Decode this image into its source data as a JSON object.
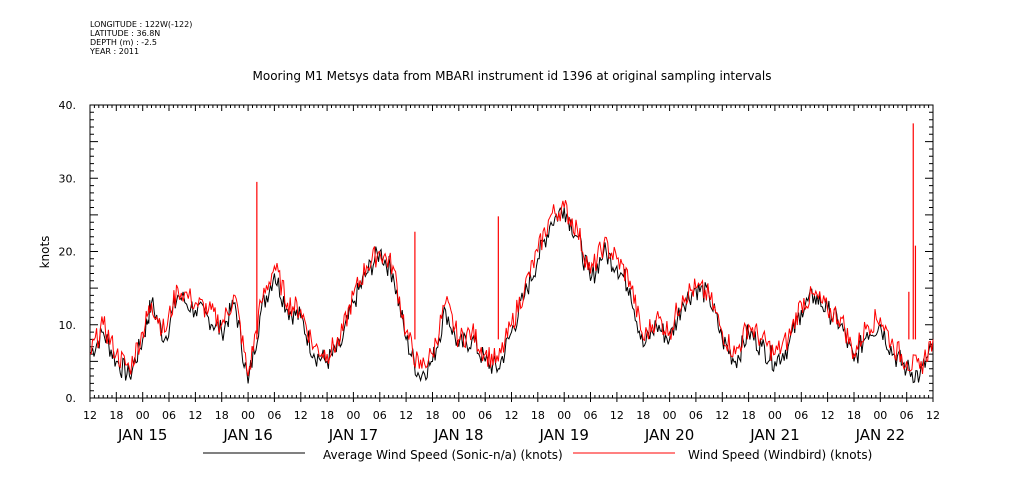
{
  "meta": {
    "longitude": "LONGITUDE : 122W(-122)",
    "latitude": "LATITUDE : 36.8N",
    "depth": "DEPTH (m) : -2.5",
    "year": "YEAR : 2011"
  },
  "chart_data": {
    "type": "line",
    "title": "Mooring M1 Metsys data from MBARI instrument id 1396 at original sampling intervals",
    "xlabel": "",
    "ylabel": "knots",
    "x_range": [
      "2011-01-14T12:00",
      "2011-01-22T12:00"
    ],
    "ylim": [
      0,
      40
    ],
    "yticks": [
      0,
      10,
      20,
      30,
      40
    ],
    "y_tick_labels": [
      "0.",
      "10.",
      "20.",
      "30.",
      "40."
    ],
    "hour_tick_labels": [
      "12",
      "18",
      "00",
      "06",
      "12",
      "18",
      "00",
      "06",
      "12",
      "18",
      "00",
      "06",
      "12",
      "18",
      "00",
      "06",
      "12",
      "18",
      "00",
      "06",
      "12",
      "18",
      "00",
      "06",
      "12",
      "18",
      "00",
      "06",
      "12",
      "18",
      "00",
      "06",
      "12"
    ],
    "day_labels": [
      {
        "x": "2011-01-15T00:00",
        "label": "JAN 15"
      },
      {
        "x": "2011-01-16T00:00",
        "label": "JAN 16"
      },
      {
        "x": "2011-01-17T00:00",
        "label": "JAN 17"
      },
      {
        "x": "2011-01-18T00:00",
        "label": "JAN 18"
      },
      {
        "x": "2011-01-19T00:00",
        "label": "JAN 19"
      },
      {
        "x": "2011-01-20T00:00",
        "label": "JAN 20"
      },
      {
        "x": "2011-01-21T00:00",
        "label": "JAN 21"
      },
      {
        "x": "2011-01-22T00:00",
        "label": "JAN 22"
      }
    ],
    "grid": false,
    "legend_position": "bottom",
    "series": [
      {
        "name": "Average Wind Speed (Sonic-n/a) (knots)",
        "color": "#000000",
        "x": [
          "2011-01-14T12:00",
          "2011-01-14T15:00",
          "2011-01-14T18:00",
          "2011-01-14T21:00",
          "2011-01-15T00:00",
          "2011-01-15T02:00",
          "2011-01-15T05:00",
          "2011-01-15T08:00",
          "2011-01-15T12:00",
          "2011-01-15T15:00",
          "2011-01-15T18:00",
          "2011-01-15T21:00",
          "2011-01-16T00:00",
          "2011-01-16T03:00",
          "2011-01-16T06:00",
          "2011-01-16T09:00",
          "2011-01-16T12:00",
          "2011-01-16T15:00",
          "2011-01-16T18:00",
          "2011-01-16T21:00",
          "2011-01-17T00:00",
          "2011-01-17T03:00",
          "2011-01-17T06:00",
          "2011-01-17T09:00",
          "2011-01-17T12:00",
          "2011-01-17T15:00",
          "2011-01-17T18:00",
          "2011-01-17T21:00",
          "2011-01-18T00:00",
          "2011-01-18T03:00",
          "2011-01-18T06:00",
          "2011-01-18T09:00",
          "2011-01-18T12:00",
          "2011-01-18T15:00",
          "2011-01-18T18:00",
          "2011-01-18T21:00",
          "2011-01-19T00:00",
          "2011-01-19T03:00",
          "2011-01-19T06:00",
          "2011-01-19T09:00",
          "2011-01-19T12:00",
          "2011-01-19T15:00",
          "2011-01-19T18:00",
          "2011-01-19T21:00",
          "2011-01-20T00:00",
          "2011-01-20T03:00",
          "2011-01-20T06:00",
          "2011-01-20T09:00",
          "2011-01-20T12:00",
          "2011-01-20T15:00",
          "2011-01-20T18:00",
          "2011-01-20T21:00",
          "2011-01-21T00:00",
          "2011-01-21T03:00",
          "2011-01-21T06:00",
          "2011-01-21T09:00",
          "2011-01-21T12:00",
          "2011-01-21T15:00",
          "2011-01-21T18:00",
          "2011-01-21T21:00",
          "2011-01-22T00:00",
          "2011-01-22T03:00",
          "2011-01-22T06:00",
          "2011-01-22T09:00",
          "2011-01-22T12:00"
        ],
        "y": [
          6,
          9,
          5,
          3,
          8,
          13,
          8,
          14,
          12,
          11,
          9,
          13,
          2,
          12,
          17,
          12,
          11,
          6,
          5,
          7,
          13,
          17,
          20,
          17,
          8,
          3,
          5,
          12,
          7,
          8,
          5,
          4,
          9,
          14,
          19,
          24,
          26,
          22,
          16,
          20,
          18,
          15,
          7,
          10,
          8,
          13,
          15,
          14,
          8,
          5,
          9,
          7,
          5,
          7,
          12,
          14,
          12,
          10,
          5,
          9,
          10,
          6,
          4,
          3,
          7
        ]
      },
      {
        "name": "Wind Speed (Windbird) (knots)",
        "color": "#ff0000",
        "x": [
          "2011-01-14T12:00",
          "2011-01-14T15:00",
          "2011-01-14T18:00",
          "2011-01-14T21:00",
          "2011-01-15T00:00",
          "2011-01-15T02:00",
          "2011-01-15T05:00",
          "2011-01-15T08:00",
          "2011-01-15T12:00",
          "2011-01-15T15:00",
          "2011-01-15T18:00",
          "2011-01-15T21:00",
          "2011-01-16T00:00",
          "2011-01-16T03:00",
          "2011-01-16T06:00",
          "2011-01-16T09:00",
          "2011-01-16T12:00",
          "2011-01-16T15:00",
          "2011-01-16T18:00",
          "2011-01-16T21:00",
          "2011-01-17T00:00",
          "2011-01-17T03:00",
          "2011-01-17T06:00",
          "2011-01-17T09:00",
          "2011-01-17T12:00",
          "2011-01-17T15:00",
          "2011-01-17T18:00",
          "2011-01-17T21:00",
          "2011-01-18T00:00",
          "2011-01-18T03:00",
          "2011-01-18T06:00",
          "2011-01-18T09:00",
          "2011-01-18T12:00",
          "2011-01-18T15:00",
          "2011-01-18T18:00",
          "2011-01-18T21:00",
          "2011-01-19T00:00",
          "2011-01-19T03:00",
          "2011-01-19T06:00",
          "2011-01-19T09:00",
          "2011-01-19T12:00",
          "2011-01-19T15:00",
          "2011-01-19T18:00",
          "2011-01-19T21:00",
          "2011-01-20T00:00",
          "2011-01-20T03:00",
          "2011-01-20T06:00",
          "2011-01-20T09:00",
          "2011-01-20T12:00",
          "2011-01-20T15:00",
          "2011-01-20T18:00",
          "2011-01-20T21:00",
          "2011-01-21T00:00",
          "2011-01-21T03:00",
          "2011-01-21T06:00",
          "2011-01-21T09:00",
          "2011-01-21T12:00",
          "2011-01-21T15:00",
          "2011-01-21T18:00",
          "2011-01-21T21:00",
          "2011-01-22T00:00",
          "2011-01-22T03:00",
          "2011-01-22T06:00",
          "2011-01-22T09:00",
          "2011-01-22T12:00"
        ],
        "y": [
          6,
          10,
          6,
          4,
          9,
          13,
          9,
          15,
          13,
          12,
          10,
          14,
          3,
          13,
          18,
          13,
          12,
          7,
          6,
          8,
          14,
          18,
          20,
          18,
          9,
          4,
          6,
          13,
          8,
          9,
          6,
          5,
          10,
          15,
          20,
          25,
          26,
          23,
          17,
          21,
          19,
          16,
          8,
          11,
          9,
          14,
          15,
          14,
          9,
          6,
          10,
          8,
          6,
          8,
          13,
          14,
          12,
          11,
          6,
          10,
          11,
          7,
          5,
          4,
          8
        ],
        "spikes": [
          {
            "x": "2011-01-16T02:00",
            "y": 29.5
          },
          {
            "x": "2011-01-17T14:00",
            "y": 22.7
          },
          {
            "x": "2011-01-18T09:00",
            "y": 24.8
          },
          {
            "x": "2011-01-22T07:30",
            "y": 37.5
          },
          {
            "x": "2011-01-22T08:00",
            "y": 20.8
          },
          {
            "x": "2011-01-22T06:30",
            "y": 14.5
          }
        ]
      }
    ]
  }
}
